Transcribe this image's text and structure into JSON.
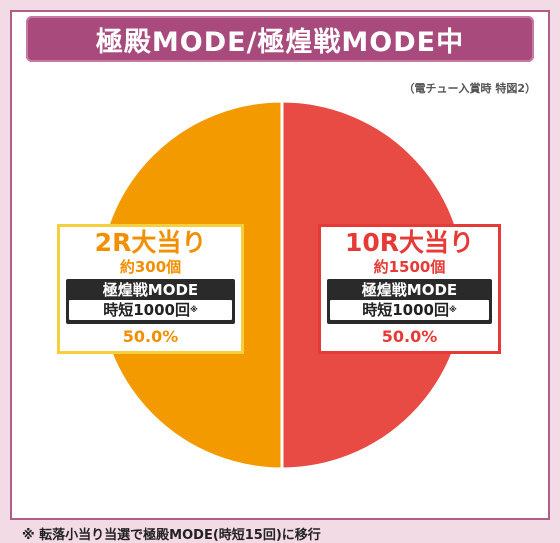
{
  "title": "極殿MODE/極煌戦MODE中",
  "note_top": "（電チュー入賞時 特図2）",
  "footnote": "※ 転落小当り当選で極殿MODE(時短15回)に移行",
  "chart_data": {
    "type": "pie",
    "slices": [
      {
        "label": "2R大当り",
        "value": 50.0,
        "value_label": "50.0%",
        "payout": "約300個",
        "mode": "極煌戦MODE",
        "jitan": "時短1000回",
        "mark": "※",
        "color": "#f39a00"
      },
      {
        "label": "10R大当り",
        "value": 50.0,
        "value_label": "50.0%",
        "payout": "約1500個",
        "mode": "極煌戦MODE",
        "jitan": "時短1000回",
        "mark": "※",
        "color": "#e84a44"
      }
    ]
  }
}
